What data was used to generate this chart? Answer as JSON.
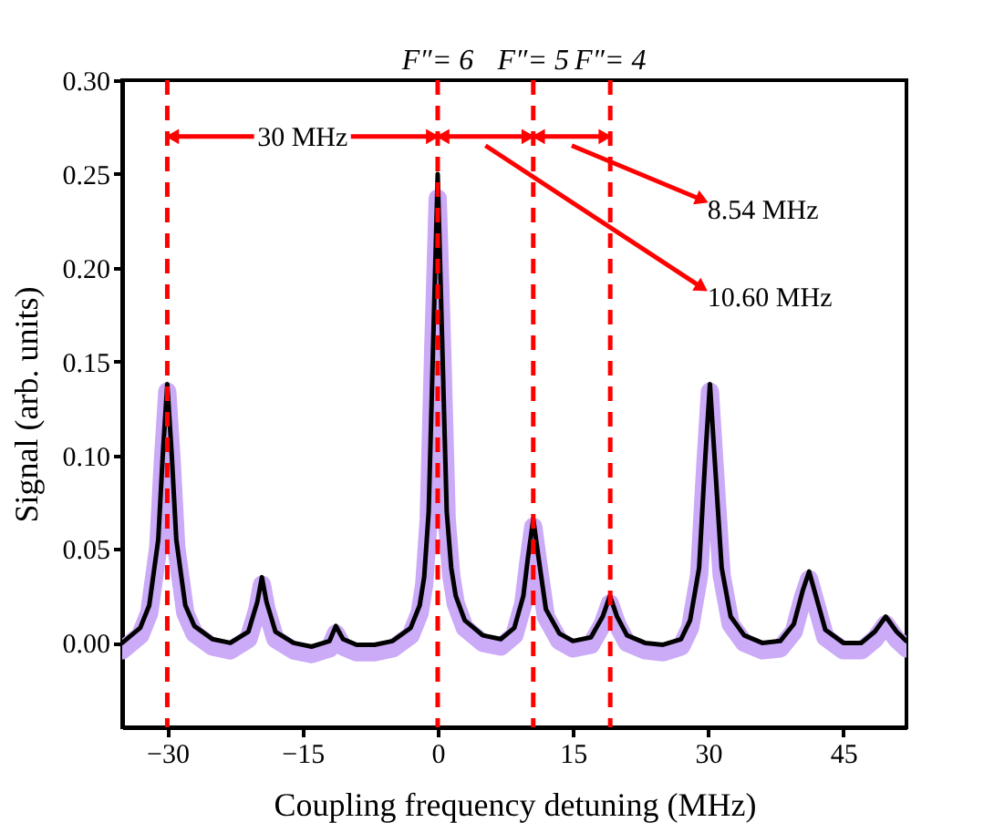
{
  "chart_data": {
    "type": "line",
    "xlabel": "Coupling frequency detuning (MHz)",
    "ylabel": "Signal (arb. units)",
    "x": [
      -35,
      -33,
      -32,
      -31,
      -30.5,
      -30,
      -29.5,
      -29,
      -28,
      -27,
      -25,
      -23,
      -21,
      -20,
      -19.5,
      -19,
      -18,
      -16,
      -14,
      -12,
      -11.3,
      -10.5,
      -9,
      -7,
      -5,
      -3,
      -2,
      -1.5,
      -1,
      -0.5,
      0,
      0.5,
      1,
      1.5,
      2,
      3,
      5,
      7,
      8.5,
      9.5,
      10,
      10.6,
      11.2,
      12,
      13.5,
      15,
      17,
      18.3,
      19.1,
      19.9,
      21,
      23,
      25,
      27,
      28,
      29,
      29.7,
      30.2,
      30.7,
      31.5,
      32.5,
      34,
      36,
      38,
      39.5,
      40.5,
      41.2,
      41.9,
      43,
      45,
      47,
      48.5,
      49.7,
      50.9,
      52
    ],
    "series": [
      {
        "color": "#cbaaf7",
        "values": [
          -0.004,
          0.004,
          0.016,
          0.051,
          0.096,
          0.134,
          0.096,
          0.051,
          0.016,
          0.005,
          -0.002,
          -0.004,
          0.002,
          0.018,
          0.031,
          0.018,
          0.002,
          -0.004,
          -0.006,
          -0.003,
          0.005,
          -0.002,
          -0.005,
          -0.005,
          -0.003,
          0.004,
          0.016,
          0.031,
          0.066,
          0.156,
          0.237,
          0.156,
          0.066,
          0.036,
          0.021,
          0.008,
          0.0,
          -0.002,
          0.004,
          0.021,
          0.041,
          0.062,
          0.041,
          0.014,
          0.001,
          -0.003,
          -0.001,
          0.01,
          0.021,
          0.01,
          0.0,
          -0.004,
          -0.005,
          -0.002,
          0.008,
          0.036,
          0.096,
          0.134,
          0.096,
          0.036,
          0.01,
          0.0,
          -0.004,
          -0.003,
          0.006,
          0.024,
          0.034,
          0.022,
          0.003,
          -0.004,
          -0.004,
          0.002,
          0.01,
          0.002,
          -0.003
        ]
      },
      {
        "color": "#000000",
        "values": [
          0.0,
          0.008,
          0.02,
          0.055,
          0.1,
          0.138,
          0.1,
          0.055,
          0.02,
          0.009,
          0.002,
          0.0,
          0.006,
          0.022,
          0.035,
          0.022,
          0.006,
          0.0,
          -0.002,
          0.001,
          0.009,
          0.002,
          -0.001,
          -0.001,
          0.001,
          0.008,
          0.02,
          0.035,
          0.07,
          0.16,
          0.25,
          0.16,
          0.07,
          0.04,
          0.025,
          0.012,
          0.004,
          0.002,
          0.008,
          0.025,
          0.045,
          0.066,
          0.045,
          0.018,
          0.005,
          0.001,
          0.003,
          0.014,
          0.025,
          0.014,
          0.004,
          0.0,
          -0.001,
          0.002,
          0.012,
          0.04,
          0.1,
          0.138,
          0.1,
          0.04,
          0.014,
          0.004,
          0.0,
          0.001,
          0.01,
          0.028,
          0.038,
          0.026,
          0.007,
          0.0,
          0.0,
          0.006,
          0.014,
          0.006,
          0.001
        ]
      }
    ],
    "xlim": [
      -35,
      52
    ],
    "xticks": [
      -30,
      -15,
      0,
      15,
      30,
      45
    ],
    "ylim": [
      -0.045,
      0.3
    ],
    "yticks": [
      {
        "value": 0,
        "label": "0.00"
      },
      {
        "value": 0.05,
        "label": "0.05"
      },
      {
        "value": 0.1,
        "label": "0.10"
      },
      {
        "value": 0.15,
        "label": "0.15"
      },
      {
        "value": 0.2,
        "label": "0.20"
      },
      {
        "value": 0.25,
        "label": "0.25"
      },
      {
        "value": 0.3,
        "label": "0.30"
      }
    ],
    "ref_lines": [
      {
        "axis": "x",
        "value": -30,
        "label": null,
        "color": "#ff0000",
        "line_style": "dashed"
      },
      {
        "axis": "x",
        "value": 0,
        "label": null,
        "color": "#ff0000",
        "line_style": "dashed"
      },
      {
        "axis": "x",
        "value": 10.6,
        "label": null,
        "color": "#ff0000",
        "line_style": "dashed"
      },
      {
        "axis": "x",
        "value": 19.14,
        "label": null,
        "color": "#ff0000",
        "line_style": "dashed"
      }
    ],
    "annotations": [
      "30 MHz",
      "8.54 MHz",
      "10.60 MHz",
      {
        "text": "F″= 6",
        "x": 0,
        "y": 0.3
      },
      {
        "text": "F″= 5",
        "x": 10.6,
        "y": 0.3
      },
      {
        "text": "F″= 4",
        "x": 19.14,
        "y": 0.3
      }
    ],
    "grid": false
  }
}
